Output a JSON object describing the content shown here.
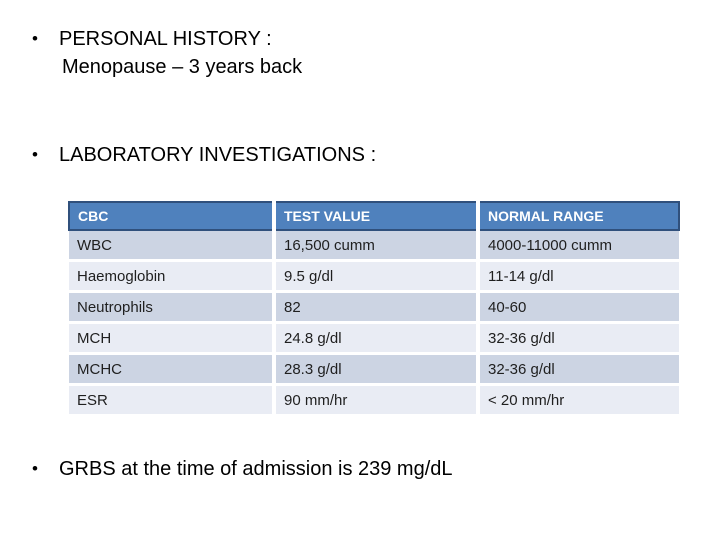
{
  "slide": {
    "background": "#ffffff"
  },
  "icons": {
    "bullet": "•"
  },
  "bullets": {
    "personal_history": "PERSONAL HISTORY :",
    "menopause": "Menopause – 3 years back",
    "lab_investigations": "LABORATORY INVESTIGATIONS :",
    "grbs": "GRBS at the time of admission is 239 mg/dL"
  },
  "table": {
    "headers": [
      "CBC",
      "TEST VALUE",
      "NORMAL RANGE"
    ],
    "rows": [
      [
        "WBC",
        "16,500 cumm",
        "4000-11000 cumm"
      ],
      [
        "Haemoglobin",
        "9.5 g/dl",
        "11-14 g/dl"
      ],
      [
        "Neutrophils",
        "82",
        "40-60"
      ],
      [
        "MCH",
        "24.8 g/dl",
        "32-36 g/dl"
      ],
      [
        "MCHC",
        "28.3 g/dl",
        "32-36 g/dl"
      ],
      [
        "ESR",
        "90 mm/hr",
        "< 20 mm/hr"
      ]
    ],
    "colors": {
      "header_bg": "#4f81bd",
      "header_text": "#ffffff",
      "header_border": "#30507c",
      "row_band_dark": "#ccd4e3",
      "row_band_light": "#e9ecf4",
      "cell_text": "#1f1f1f"
    }
  }
}
